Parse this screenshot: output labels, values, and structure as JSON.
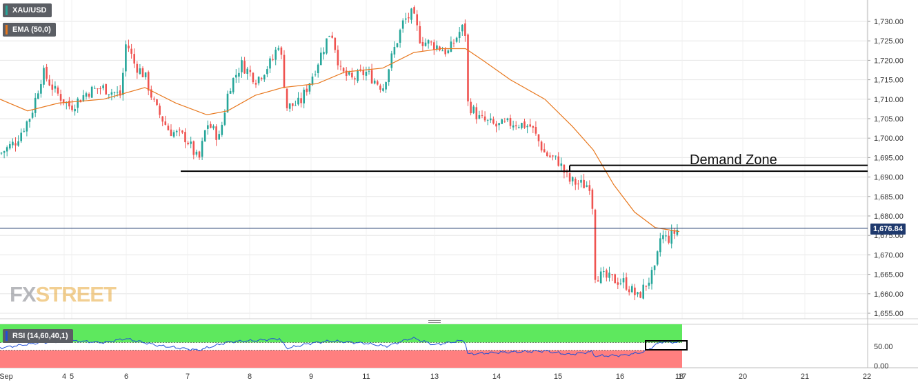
{
  "chart_data": [
    {
      "type": "candlestick",
      "symbol": "XAU/USD",
      "indicator_label": "EMA (50,0)",
      "ema_color": "#e8781e",
      "up_color": "#26a69a",
      "down_color": "#ef5350",
      "ylim": [
        1653,
        1735
      ],
      "y_ticks": [
        "1,655.00",
        "1,660.00",
        "1,665.00",
        "1,670.00",
        "1,675.00",
        "1,680.00",
        "1,685.00",
        "1,690.00",
        "1,695.00",
        "1,700.00",
        "1,705.00",
        "1,710.00",
        "1,715.00",
        "1,720.00",
        "1,725.00",
        "1,730.00"
      ],
      "x_ticks": [
        "Sep",
        "4",
        "5",
        "6",
        "7",
        "8",
        "9",
        "11",
        "13",
        "14",
        "15",
        "16",
        "17",
        "18",
        "20",
        "21",
        "22"
      ],
      "last_price": 1676.84,
      "last_price_label": "1,676.84",
      "annotation": "Demand Zone",
      "demand_zone": [
        1691.5,
        1693
      ],
      "support_line": 1691.5,
      "price_path": [
        {
          "x": 0,
          "y": 1696
        },
        {
          "x": 22,
          "y": 1699
        },
        {
          "x": 45,
          "y": 1706
        },
        {
          "x": 62,
          "y": 1717
        },
        {
          "x": 80,
          "y": 1712
        },
        {
          "x": 102,
          "y": 1708
        },
        {
          "x": 128,
          "y": 1712
        },
        {
          "x": 148,
          "y": 1713
        },
        {
          "x": 175,
          "y": 1711
        },
        {
          "x": 183,
          "y": 1725
        },
        {
          "x": 195,
          "y": 1719
        },
        {
          "x": 210,
          "y": 1716
        },
        {
          "x": 225,
          "y": 1708
        },
        {
          "x": 245,
          "y": 1702
        },
        {
          "x": 270,
          "y": 1700
        },
        {
          "x": 288,
          "y": 1694
        },
        {
          "x": 300,
          "y": 1704
        },
        {
          "x": 318,
          "y": 1700
        },
        {
          "x": 332,
          "y": 1713
        },
        {
          "x": 350,
          "y": 1719
        },
        {
          "x": 372,
          "y": 1715
        },
        {
          "x": 395,
          "y": 1720
        },
        {
          "x": 405,
          "y": 1725
        },
        {
          "x": 416,
          "y": 1708
        },
        {
          "x": 435,
          "y": 1709
        },
        {
          "x": 455,
          "y": 1717
        },
        {
          "x": 480,
          "y": 1728
        },
        {
          "x": 494,
          "y": 1717
        },
        {
          "x": 510,
          "y": 1715
        },
        {
          "x": 530,
          "y": 1717
        },
        {
          "x": 555,
          "y": 1713
        },
        {
          "x": 570,
          "y": 1722
        },
        {
          "x": 585,
          "y": 1730
        },
        {
          "x": 598,
          "y": 1732
        },
        {
          "x": 610,
          "y": 1725
        },
        {
          "x": 630,
          "y": 1724
        },
        {
          "x": 650,
          "y": 1722
        },
        {
          "x": 665,
          "y": 1727
        },
        {
          "x": 674,
          "y": 1729
        },
        {
          "x": 678,
          "y": 1709
        },
        {
          "x": 695,
          "y": 1705
        },
        {
          "x": 720,
          "y": 1703
        },
        {
          "x": 745,
          "y": 1704
        },
        {
          "x": 770,
          "y": 1703
        },
        {
          "x": 790,
          "y": 1696
        },
        {
          "x": 810,
          "y": 1694
        },
        {
          "x": 825,
          "y": 1689
        },
        {
          "x": 845,
          "y": 1688
        },
        {
          "x": 858,
          "y": 1688
        },
        {
          "x": 862,
          "y": 1665
        },
        {
          "x": 880,
          "y": 1664
        },
        {
          "x": 905,
          "y": 1663
        },
        {
          "x": 925,
          "y": 1659
        },
        {
          "x": 935,
          "y": 1662
        },
        {
          "x": 950,
          "y": 1666
        },
        {
          "x": 958,
          "y": 1675
        },
        {
          "x": 968,
          "y": 1674
        },
        {
          "x": 985,
          "y": 1677
        }
      ],
      "ema_path": [
        {
          "x": 0,
          "y": 1710
        },
        {
          "x": 40,
          "y": 1707
        },
        {
          "x": 85,
          "y": 1709
        },
        {
          "x": 150,
          "y": 1710
        },
        {
          "x": 210,
          "y": 1713
        },
        {
          "x": 255,
          "y": 1709
        },
        {
          "x": 300,
          "y": 1706
        },
        {
          "x": 330,
          "y": 1707
        },
        {
          "x": 370,
          "y": 1711
        },
        {
          "x": 410,
          "y": 1713
        },
        {
          "x": 460,
          "y": 1714
        },
        {
          "x": 500,
          "y": 1717
        },
        {
          "x": 555,
          "y": 1718
        },
        {
          "x": 600,
          "y": 1722
        },
        {
          "x": 640,
          "y": 1723
        },
        {
          "x": 675,
          "y": 1723
        },
        {
          "x": 700,
          "y": 1720
        },
        {
          "x": 740,
          "y": 1715
        },
        {
          "x": 790,
          "y": 1710
        },
        {
          "x": 830,
          "y": 1703
        },
        {
          "x": 860,
          "y": 1697
        },
        {
          "x": 890,
          "y": 1688
        },
        {
          "x": 920,
          "y": 1681
        },
        {
          "x": 950,
          "y": 1677
        },
        {
          "x": 985,
          "y": 1676
        }
      ]
    },
    {
      "type": "line",
      "indicator_label": "RSI (14,60,40,1)",
      "overbought": 60,
      "oversold": 40,
      "ylim": [
        0,
        100
      ],
      "y_ticks": [
        "50.00",
        "0.00"
      ],
      "overbought_color": "#5ee85e",
      "oversold_color": "#ff7f7f",
      "line_color": "#1f4fd8",
      "path": [
        {
          "x": 0,
          "y": 46
        },
        {
          "x": 60,
          "y": 60
        },
        {
          "x": 110,
          "y": 64
        },
        {
          "x": 150,
          "y": 60
        },
        {
          "x": 182,
          "y": 70
        },
        {
          "x": 230,
          "y": 52
        },
        {
          "x": 288,
          "y": 40
        },
        {
          "x": 332,
          "y": 62
        },
        {
          "x": 370,
          "y": 65
        },
        {
          "x": 405,
          "y": 70
        },
        {
          "x": 416,
          "y": 45
        },
        {
          "x": 450,
          "y": 58
        },
        {
          "x": 480,
          "y": 64
        },
        {
          "x": 530,
          "y": 58
        },
        {
          "x": 560,
          "y": 50
        },
        {
          "x": 598,
          "y": 72
        },
        {
          "x": 630,
          "y": 54
        },
        {
          "x": 674,
          "y": 66
        },
        {
          "x": 678,
          "y": 30
        },
        {
          "x": 720,
          "y": 34
        },
        {
          "x": 790,
          "y": 38
        },
        {
          "x": 825,
          "y": 29
        },
        {
          "x": 858,
          "y": 36
        },
        {
          "x": 862,
          "y": 25
        },
        {
          "x": 905,
          "y": 27
        },
        {
          "x": 935,
          "y": 36
        },
        {
          "x": 958,
          "y": 62
        },
        {
          "x": 985,
          "y": 60
        }
      ]
    }
  ]
}
